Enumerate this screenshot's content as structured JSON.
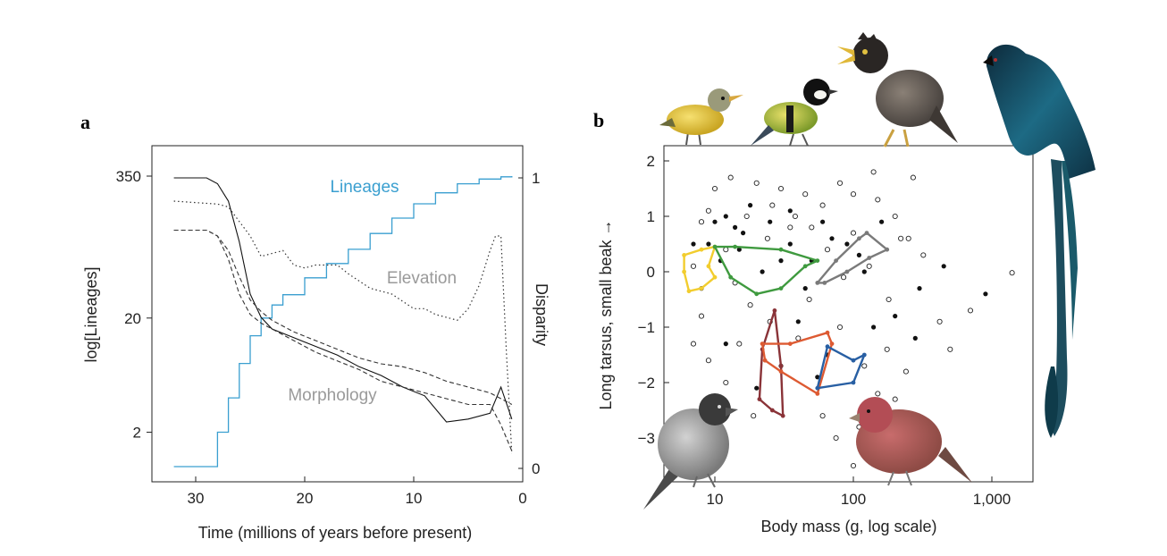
{
  "panel_a": {
    "letter": "a",
    "left_ticks": [
      "350",
      "20",
      "2"
    ],
    "right_ticks": [
      "1",
      "0"
    ],
    "x_ticks": [
      "30",
      "20",
      "10",
      "0"
    ],
    "ylabel_left": "log[Lineages]",
    "ylabel_right": "Disparity",
    "xlabel": "Time (millions of years before present)",
    "labels": {
      "lineages": "Lineages",
      "elevation": "Elevation",
      "morphology": "Morphology"
    }
  },
  "panel_b": {
    "letter": "b",
    "y_ticks": [
      "2",
      "1",
      "0",
      "−1",
      "−2",
      "−3"
    ],
    "x_ticks": [
      "10",
      "100",
      "1,000"
    ],
    "ylabel": "Long tarsus, small beak →",
    "xlabel": "Body mass (g, log scale)"
  },
  "colors": {
    "lineages": "#3a9fd0",
    "axis": "#222222",
    "hull_yellow": "#f2cd2e",
    "hull_green": "#3f9a3f",
    "hull_gray": "#7a7a7a",
    "hull_orange": "#dd5a32",
    "hull_blue": "#285fa3",
    "hull_maroon": "#8a3338"
  },
  "icons": [
    "yellow-warbler-icon",
    "great-tit-icon",
    "myna-icon",
    "drongo-icon",
    "grey-finch-icon",
    "rosefinch-icon"
  ],
  "chart_data": [
    {
      "type": "line",
      "x_unit": "Ma",
      "xlim": [
        33,
        0
      ],
      "series": [
        {
          "name": "Lineages",
          "axis": "left_log",
          "ylim": [
            1,
            350
          ],
          "x": [
            32,
            28,
            27,
            26,
            25,
            24,
            23,
            22,
            20,
            18,
            16,
            14,
            12,
            10,
            8,
            6,
            4,
            2,
            1
          ],
          "y": [
            1,
            2,
            4,
            8,
            14,
            20,
            26,
            32,
            45,
            60,
            80,
            110,
            150,
            200,
            250,
            300,
            330,
            345,
            350
          ]
        },
        {
          "name": "Elevation",
          "axis": "right",
          "ylim": [
            0,
            1
          ],
          "x": [
            32,
            28,
            27,
            26,
            25,
            24,
            22,
            21,
            20,
            19,
            17,
            16,
            14,
            12,
            10,
            9,
            8,
            7,
            6,
            5,
            4,
            3,
            2.5,
            2,
            1.5,
            1
          ],
          "y": [
            0.92,
            0.91,
            0.9,
            0.85,
            0.8,
            0.73,
            0.75,
            0.7,
            0.69,
            0.7,
            0.7,
            0.67,
            0.62,
            0.6,
            0.55,
            0.55,
            0.53,
            0.52,
            0.51,
            0.55,
            0.63,
            0.75,
            0.8,
            0.8,
            0.4,
            0.05
          ]
        },
        {
          "name": "Morphology",
          "axis": "right",
          "ylim": [
            0,
            1
          ],
          "x": [
            32,
            29,
            28,
            27,
            26,
            25,
            24,
            23,
            21,
            19,
            17,
            15,
            13,
            11,
            9,
            7,
            5,
            3,
            2,
            1
          ],
          "y": [
            1.0,
            1.0,
            0.98,
            0.92,
            0.78,
            0.6,
            0.52,
            0.48,
            0.45,
            0.42,
            0.39,
            0.35,
            0.32,
            0.28,
            0.25,
            0.16,
            0.17,
            0.19,
            0.28,
            0.17
          ]
        },
        {
          "name": "Morphology",
          "axis": "right",
          "ylim": [
            0,
            1
          ],
          "x": [
            32,
            29,
            28,
            27,
            26,
            25,
            24,
            23,
            21,
            19,
            17,
            15,
            13,
            11,
            9,
            7,
            5,
            3,
            2,
            1
          ],
          "y": [
            0.82,
            0.82,
            0.8,
            0.75,
            0.66,
            0.58,
            0.54,
            0.51,
            0.47,
            0.44,
            0.41,
            0.38,
            0.36,
            0.35,
            0.33,
            0.3,
            0.28,
            0.26,
            0.24,
            0.22
          ]
        },
        {
          "name": "Morphology",
          "axis": "right",
          "ylim": [
            0,
            1
          ],
          "x": [
            32,
            29,
            28,
            27,
            26,
            25,
            24,
            23,
            21,
            19,
            17,
            15,
            13,
            11,
            9,
            7,
            5,
            3,
            2,
            1
          ],
          "y": [
            0.82,
            0.82,
            0.8,
            0.72,
            0.6,
            0.53,
            0.5,
            0.48,
            0.44,
            0.4,
            0.37,
            0.34,
            0.3,
            0.28,
            0.26,
            0.24,
            0.22,
            0.22,
            0.15,
            0.06
          ]
        }
      ]
    },
    {
      "type": "scatter",
      "x_scale": "log",
      "xlim": [
        4,
        2000
      ],
      "ylim": [
        -3.8,
        2.3
      ],
      "points_closed": [
        [
          12,
          1.0
        ],
        [
          14,
          0.8
        ],
        [
          18,
          1.2
        ],
        [
          9,
          0.5
        ],
        [
          22,
          0.0
        ],
        [
          35,
          0.5
        ],
        [
          45,
          -0.3
        ],
        [
          50,
          0.2
        ],
        [
          70,
          0.6
        ],
        [
          120,
          0.0
        ],
        [
          200,
          -0.8
        ],
        [
          280,
          -1.2
        ],
        [
          300,
          -0.3
        ],
        [
          450,
          0.1
        ],
        [
          900,
          -0.4
        ],
        [
          65,
          -1.5
        ],
        [
          30,
          -1.7
        ],
        [
          20,
          -2.1
        ],
        [
          7,
          0.5
        ],
        [
          10,
          0.9
        ],
        [
          15,
          0.4
        ],
        [
          25,
          0.9
        ],
        [
          35,
          1.1
        ],
        [
          60,
          0.9
        ],
        [
          110,
          0.3
        ],
        [
          8,
          -0.3
        ],
        [
          12,
          -1.3
        ],
        [
          40,
          -0.9
        ],
        [
          140,
          -1.0
        ],
        [
          55,
          -1.9
        ],
        [
          16,
          0.7
        ],
        [
          11,
          0.2
        ],
        [
          30,
          0.2
        ],
        [
          90,
          0.5
        ],
        [
          160,
          0.9
        ]
      ],
      "points_open": [
        [
          8,
          0.9
        ],
        [
          10,
          1.5
        ],
        [
          13,
          1.7
        ],
        [
          20,
          1.6
        ],
        [
          30,
          1.5
        ],
        [
          45,
          1.4
        ],
        [
          60,
          1.2
        ],
        [
          80,
          1.6
        ],
        [
          100,
          1.4
        ],
        [
          150,
          1.3
        ],
        [
          200,
          1.0
        ],
        [
          250,
          0.6
        ],
        [
          8,
          -0.8
        ],
        [
          9,
          -1.6
        ],
        [
          15,
          -1.3
        ],
        [
          25,
          -0.9
        ],
        [
          40,
          -1.2
        ],
        [
          80,
          -1.0
        ],
        [
          120,
          -1.7
        ],
        [
          150,
          -2.2
        ],
        [
          200,
          -2.3
        ],
        [
          110,
          -2.8
        ],
        [
          75,
          -3.0
        ],
        [
          100,
          -3.5
        ],
        [
          700,
          -0.7
        ],
        [
          500,
          -1.4
        ],
        [
          1400,
          -0.02
        ],
        [
          7,
          0.1
        ],
        [
          14,
          -0.2
        ],
        [
          18,
          -0.6
        ],
        [
          24,
          0.6
        ],
        [
          35,
          0.8
        ],
        [
          50,
          0.8
        ],
        [
          65,
          0.4
        ],
        [
          130,
          0.1
        ],
        [
          180,
          -0.5
        ],
        [
          320,
          0.3
        ],
        [
          420,
          -0.9
        ],
        [
          220,
          0.6
        ],
        [
          9,
          1.1
        ],
        [
          12,
          0.4
        ],
        [
          17,
          1.0
        ],
        [
          26,
          1.2
        ],
        [
          38,
          1.0
        ],
        [
          48,
          -0.5
        ],
        [
          85,
          -0.1
        ],
        [
          100,
          0.7
        ],
        [
          175,
          -1.4
        ],
        [
          60,
          -2.6
        ],
        [
          19,
          -2.6
        ],
        [
          12,
          -2.0
        ],
        [
          7,
          -1.3
        ],
        [
          270,
          1.7
        ],
        [
          140,
          1.8
        ],
        [
          240,
          -1.8
        ]
      ],
      "hulls": [
        {
          "color": "yellow",
          "points": [
            [
              6,
              0.3
            ],
            [
              8,
              0.4
            ],
            [
              10,
              0.45
            ],
            [
              9,
              0.1
            ],
            [
              10,
              -0.1
            ],
            [
              8,
              -0.3
            ],
            [
              6.5,
              -0.35
            ],
            [
              6,
              0.0
            ]
          ]
        },
        {
          "color": "green",
          "points": [
            [
              10,
              0.45
            ],
            [
              14,
              0.45
            ],
            [
              30,
              0.4
            ],
            [
              55,
              0.2
            ],
            [
              45,
              0.1
            ],
            [
              30,
              -0.3
            ],
            [
              20,
              -0.4
            ],
            [
              13,
              -0.1
            ]
          ]
        },
        {
          "color": "gray",
          "points": [
            [
              55,
              -0.2
            ],
            [
              75,
              0.2
            ],
            [
              110,
              0.6
            ],
            [
              125,
              0.7
            ],
            [
              175,
              0.4
            ],
            [
              130,
              0.25
            ],
            [
              90,
              0.0
            ],
            [
              62,
              -0.2
            ]
          ]
        },
        {
          "color": "maroon",
          "points": [
            [
              27,
              -0.7
            ],
            [
              30,
              -1.7
            ],
            [
              31,
              -2.6
            ],
            [
              26,
              -2.5
            ],
            [
              21,
              -2.3
            ],
            [
              22,
              -1.4
            ]
          ]
        },
        {
          "color": "orange",
          "points": [
            [
              22,
              -1.3
            ],
            [
              35,
              -1.3
            ],
            [
              65,
              -1.1
            ],
            [
              70,
              -1.3
            ],
            [
              55,
              -2.2
            ],
            [
              30,
              -1.8
            ],
            [
              23,
              -1.6
            ]
          ]
        },
        {
          "color": "blue",
          "points": [
            [
              65,
              -1.35
            ],
            [
              100,
              -1.6
            ],
            [
              120,
              -1.5
            ],
            [
              100,
              -2.0
            ],
            [
              55,
              -2.1
            ]
          ]
        }
      ]
    }
  ]
}
